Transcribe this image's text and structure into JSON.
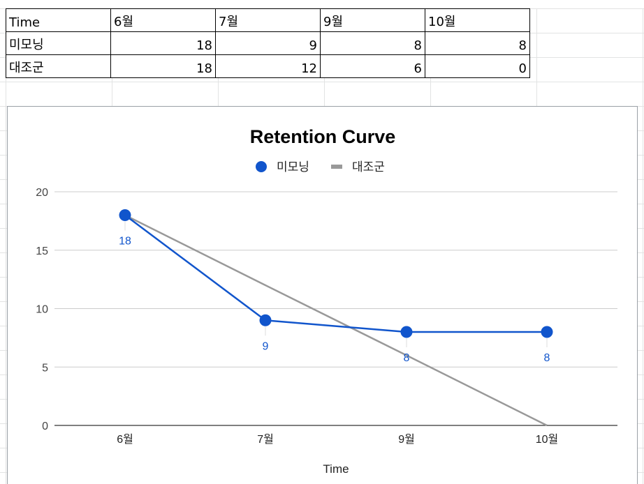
{
  "table": {
    "header": [
      "Time",
      "6월",
      "7월",
      "9월",
      "10월"
    ],
    "rows": [
      {
        "label": "미모닝",
        "values": [
          "18",
          "9",
          "8",
          "8"
        ]
      },
      {
        "label": "대조군",
        "values": [
          "18",
          "12",
          "6",
          "0"
        ]
      }
    ]
  },
  "chart_data": {
    "type": "line",
    "title": "Retention Curve",
    "xlabel": "Time",
    "ylabel": "",
    "categories": [
      "6월",
      "7월",
      "9월",
      "10월"
    ],
    "ylim": [
      0,
      20
    ],
    "yticks": [
      "0",
      "5",
      "10",
      "15",
      "20"
    ],
    "legend_position": "top",
    "series": [
      {
        "name": "미모닝",
        "values": [
          18,
          9,
          8,
          8
        ],
        "color": "#1155cc",
        "markers": true,
        "data_labels": [
          "18",
          "9",
          "8",
          "8"
        ]
      },
      {
        "name": "대조군",
        "values": [
          18,
          12,
          6,
          0
        ],
        "color": "#999999",
        "markers": false
      }
    ]
  }
}
